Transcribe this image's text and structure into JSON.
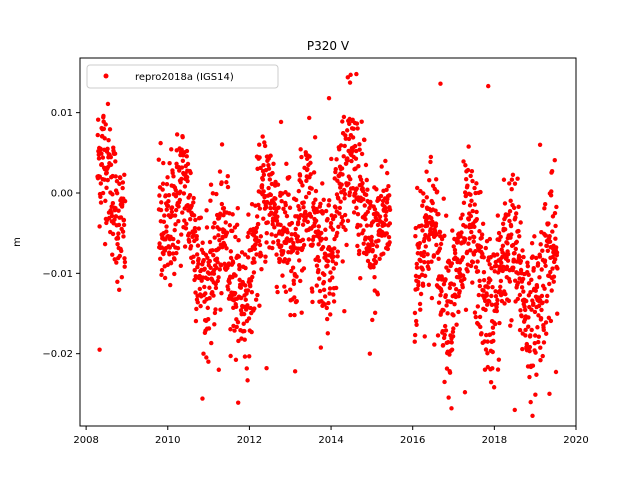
{
  "chart_data": {
    "type": "scatter",
    "title": "P320 V",
    "xlabel": "",
    "ylabel": "m",
    "xlim": [
      2007.85,
      2020.0
    ],
    "ylim": [
      -0.029,
      0.0168
    ],
    "x_ticks": [
      2008,
      2010,
      2012,
      2014,
      2016,
      2018,
      2020
    ],
    "x_tick_labels": [
      "2008",
      "2010",
      "2012",
      "2014",
      "2016",
      "2018",
      "2020"
    ],
    "y_ticks": [
      0.01,
      0.0,
      -0.01,
      -0.02
    ],
    "y_tick_labels": [
      "0.01",
      "0.00",
      "−0.01",
      "−0.02"
    ],
    "grid": false,
    "legend_position": "top-left",
    "marker_color": "#ff0000",
    "series": [
      {
        "name": "repro2018a (IGS14)",
        "color": "#ff0000",
        "segments": [
          {
            "start": 2008.28,
            "end": 2008.96,
            "mean": [
              0.0,
              0.0
            ],
            "spread": 0.004
          },
          {
            "start": 2009.78,
            "end": 2011.7,
            "mean": [
              0.0,
              -0.012
            ],
            "spread": 0.0042
          },
          {
            "start": 2011.7,
            "end": 2013.0,
            "mean": [
              -0.01,
              0.0
            ],
            "spread": 0.0042
          },
          {
            "start": 2013.0,
            "end": 2014.9,
            "mean": [
              -0.008,
              0.002
            ],
            "spread": 0.0044
          },
          {
            "start": 2014.9,
            "end": 2015.45,
            "mean": [
              -0.003,
              -0.008
            ],
            "spread": 0.004
          },
          {
            "start": 2016.05,
            "end": 2019.55,
            "mean": [
              -0.008,
              -0.012
            ],
            "spread": 0.0046
          }
        ],
        "outliers": [
          {
            "x": 2008.33,
            "y": -0.0195
          },
          {
            "x": 2014.48,
            "y": 0.0147
          },
          {
            "x": 2014.62,
            "y": 0.0148
          },
          {
            "x": 2016.68,
            "y": 0.0136
          },
          {
            "x": 2017.85,
            "y": 0.0133
          },
          {
            "x": 2013.95,
            "y": 0.0118
          },
          {
            "x": 2016.95,
            "y": -0.0268
          },
          {
            "x": 2018.5,
            "y": -0.027
          },
          {
            "x": 2011.25,
            "y": -0.022
          },
          {
            "x": 2012.42,
            "y": -0.0218
          },
          {
            "x": 2013.12,
            "y": -0.0222
          },
          {
            "x": 2019.12,
            "y": 0.006
          },
          {
            "x": 2014.95,
            "y": -0.02
          },
          {
            "x": 2017.28,
            "y": -0.0248
          },
          {
            "x": 2019.35,
            "y": -0.025
          }
        ]
      }
    ]
  }
}
